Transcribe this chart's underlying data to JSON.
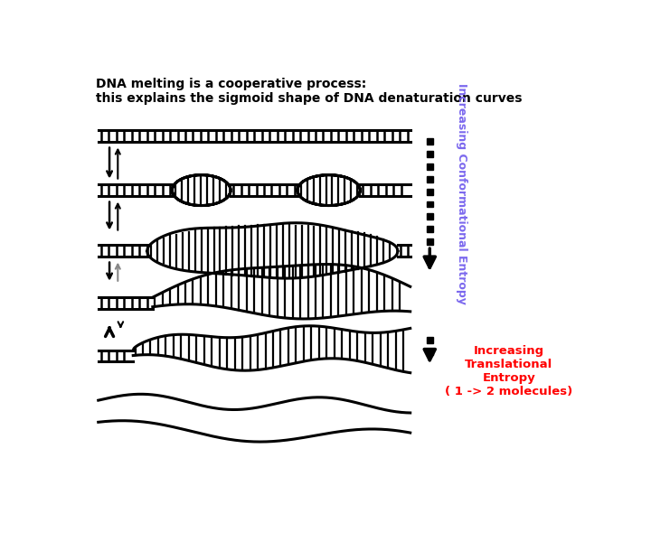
{
  "title_line1": "DNA melting is a cooperative process:",
  "title_line2": "this explains the sigmoid shape of DNA denaturation curves",
  "conformational_entropy_label": "Increasing Conformational Entropy",
  "translational_entropy_label": "Increasing\nTranslational\nEntropy\n( 1 -> 2 molecules)",
  "conformational_color": "#7B68EE",
  "translational_color": "#FF0000",
  "background_color": "#FFFFFF"
}
